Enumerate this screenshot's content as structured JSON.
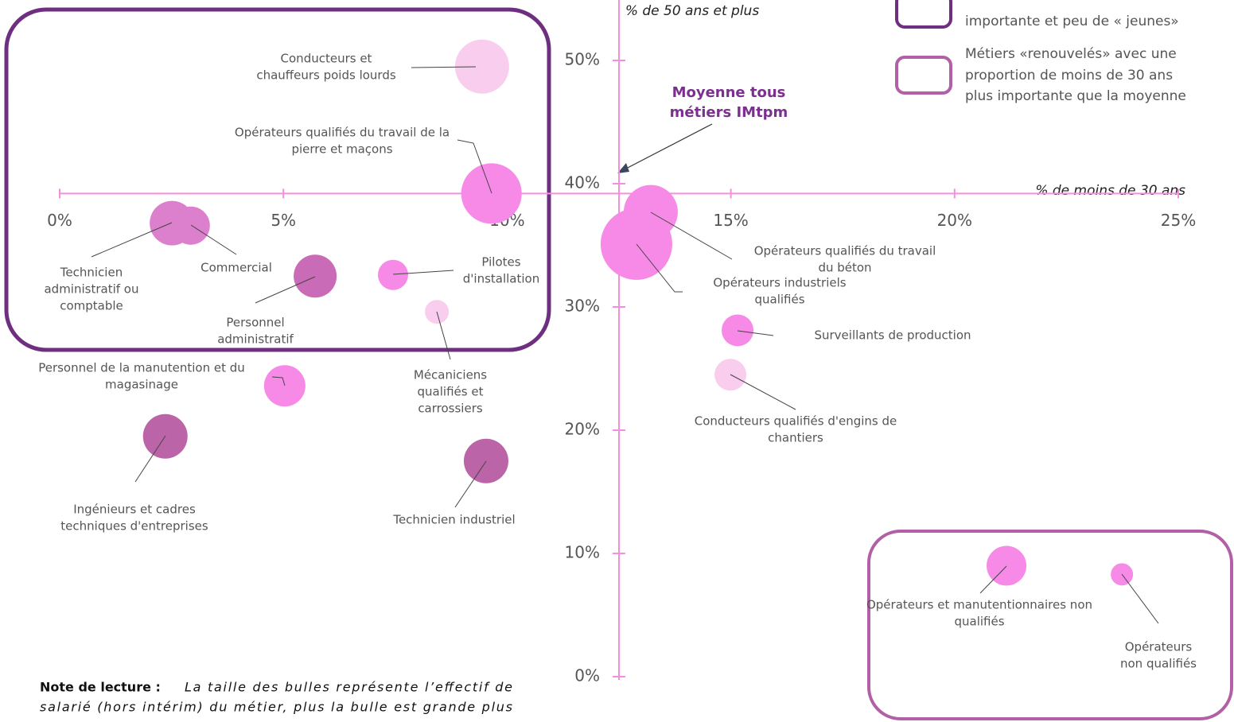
{
  "chart_data": {
    "type": "bubble",
    "xlabel": "% de moins de 30 ans",
    "ylabel": "% de 50 ans et plus",
    "xlim": [
      0,
      25
    ],
    "ylim": [
      0,
      55
    ],
    "x_axis_at": 39.2,
    "y_axis_at": 12.5,
    "xticks": [
      {
        "value": 0,
        "label": "0%"
      },
      {
        "value": 5,
        "label": "5%"
      },
      {
        "value": 10,
        "label": "10%"
      },
      {
        "value": 15,
        "label": "15%"
      },
      {
        "value": 20,
        "label": "20%"
      },
      {
        "value": 25,
        "label": "25%"
      }
    ],
    "yticks": [
      {
        "value": 0,
        "label": "0%"
      },
      {
        "value": 10,
        "label": "10%"
      },
      {
        "value": 20,
        "label": "20%"
      },
      {
        "value": 30,
        "label": "30%"
      },
      {
        "value": 40,
        "label": "40%"
      },
      {
        "value": 50,
        "label": "50%"
      }
    ],
    "axis_color": "#f48fdf",
    "average_annotation": [
      "Moyenne tous",
      "métiers IMtpm"
    ],
    "legend": [
      {
        "lines": [
          "importante et peu de  « jeunes»"
        ],
        "color": "#6f2f80"
      },
      {
        "lines": [
          "Métiers «renouvelés» avec une",
          "proportion de moins de 30 ans",
          "plus importante que la moyenne"
        ],
        "color": "#b260a6"
      }
    ],
    "note": {
      "bold": "Note de lecture :",
      "lines": [
        "La taille des bulles représente l’effectif de",
        "salarié (hors intérim) du métier, plus la bulle est grande plus"
      ]
    },
    "points": [
      {
        "label": [
          "Conducteurs et",
          "chauffeurs poids lourds"
        ],
        "x": 9.44,
        "y": 49.5,
        "size": 34,
        "color": "#f9cdee"
      },
      {
        "label": [
          "Opérateurs qualifiés du travail de la",
          "pierre et maçons"
        ],
        "x": 9.65,
        "y": 39.2,
        "size": 38,
        "color": "#f78ae6"
      },
      {
        "label": [
          "Technicien",
          "administratif ou",
          "comptable"
        ],
        "x": 2.51,
        "y": 36.8,
        "size": 28,
        "color": "#dc7fcc"
      },
      {
        "label": [
          "Commercial"
        ],
        "x": 2.93,
        "y": 36.6,
        "size": 24,
        "color": "#dc7fcc"
      },
      {
        "label": [
          "Personnel",
          "administratif"
        ],
        "x": 5.71,
        "y": 32.5,
        "size": 27,
        "color": "#ca6bb8"
      },
      {
        "label": [
          "Pilotes",
          "d'installation"
        ],
        "x": 7.45,
        "y": 32.6,
        "size": 19,
        "color": "#f78ae6"
      },
      {
        "label": [
          "Mécaniciens",
          "qualifiés et",
          "carrossiers"
        ],
        "x": 8.43,
        "y": 29.6,
        "size": 15,
        "color": "#f9cdee"
      },
      {
        "label": [
          "Personnel de la manutention et du",
          "magasinage"
        ],
        "x": 5.03,
        "y": 23.6,
        "size": 26,
        "color": "#f78ae6"
      },
      {
        "label": [
          "Ingénieurs et cadres",
          "techniques d'entreprises"
        ],
        "x": 2.36,
        "y": 19.5,
        "size": 28,
        "color": "#bb65a8"
      },
      {
        "label": [
          "Technicien industriel"
        ],
        "x": 9.53,
        "y": 17.5,
        "size": 28,
        "color": "#bb65a8"
      },
      {
        "label": [
          "Opérateurs qualifiés du travail",
          "du béton"
        ],
        "x": 13.21,
        "y": 37.7,
        "size": 34,
        "color": "#f78ae6"
      },
      {
        "label": [
          "Opérateurs industriels",
          "qualifiés"
        ],
        "x": 12.89,
        "y": 35.1,
        "size": 45,
        "color": "#f78ae6"
      },
      {
        "label": [
          "Surveillants de production"
        ],
        "x": 15.15,
        "y": 28.1,
        "size": 20,
        "color": "#f78ae6"
      },
      {
        "label": [
          "Conducteurs qualifiés d'engins de",
          "chantiers"
        ],
        "x": 14.99,
        "y": 24.5,
        "size": 20,
        "color": "#f9cdee"
      },
      {
        "label": [
          "Opérateurs et manutentionnaires non",
          "qualifiés"
        ],
        "x": 21.16,
        "y": 9.0,
        "size": 25,
        "color": "#f78ae6"
      },
      {
        "label": [
          "Opérateurs",
          "non qualifiés"
        ],
        "x": 23.74,
        "y": 8.3,
        "size": 14,
        "color": "#f78ae6"
      }
    ]
  }
}
